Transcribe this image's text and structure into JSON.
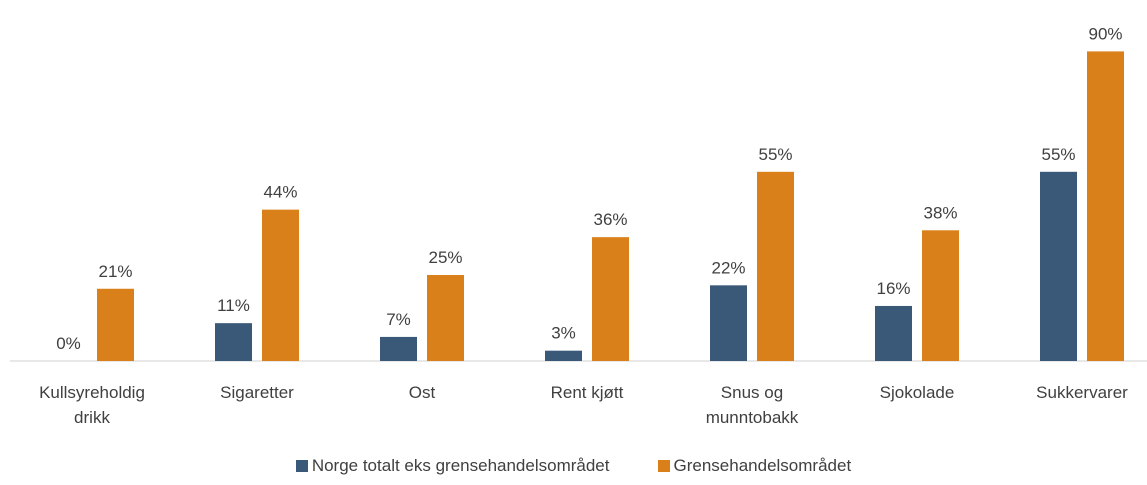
{
  "chart_data": {
    "type": "bar",
    "categories": [
      "Kullsyreholdig drikk",
      "Sigaretter",
      "Ost",
      "Rent kjøtt",
      "Snus og munntobakk",
      "Sjokolade",
      "Sukkervarer"
    ],
    "series": [
      {
        "name": "Norge totalt eks grensehandelsområdet",
        "color": "#3a5878",
        "values": [
          0,
          11,
          7,
          3,
          22,
          16,
          55
        ],
        "value_labels": [
          "0%",
          "11%",
          "7%",
          "3%",
          "22%",
          "16%",
          "55%"
        ]
      },
      {
        "name": "Grensehandelsområdet",
        "color": "#d9801a",
        "values": [
          21,
          44,
          25,
          36,
          55,
          38,
          90
        ],
        "value_labels": [
          "21%",
          "44%",
          "25%",
          "36%",
          "55%",
          "38%",
          "90%"
        ]
      }
    ],
    "legend": "bottom"
  }
}
